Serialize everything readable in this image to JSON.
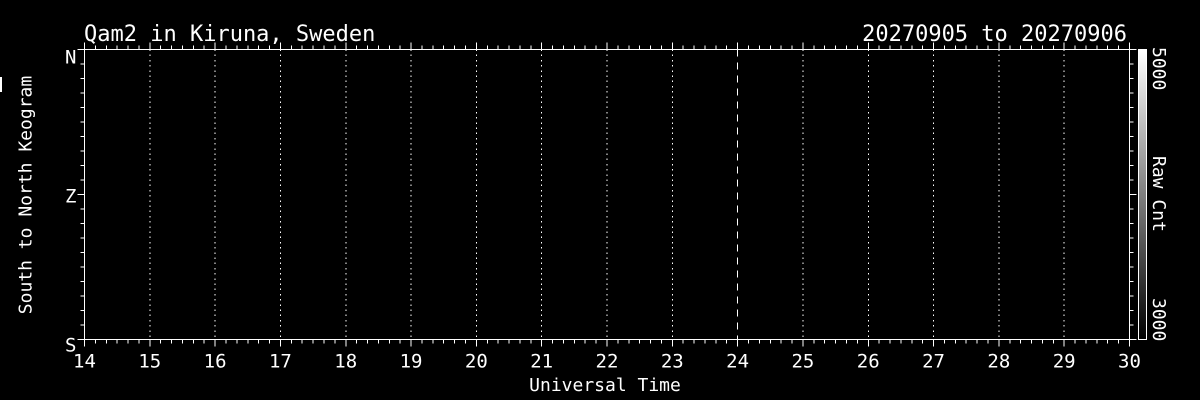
{
  "window": {
    "background_color": "#000000",
    "foreground_color": "#ffffff"
  },
  "chart_data": {
    "type": "heatmap",
    "variant": "keogram",
    "title": "Qam2 in Kiruna, Sweden",
    "date_range": "20270905 to 20270906",
    "xlabel": "Universal Time",
    "ylabel": "South to North Keogram",
    "xlim": [
      14,
      30
    ],
    "xticks": [
      14,
      15,
      16,
      17,
      18,
      19,
      20,
      21,
      22,
      23,
      24,
      25,
      26,
      27,
      28,
      29,
      30
    ],
    "x_minor_divisions_per_hour": 6,
    "ytick_labels": [
      "N",
      "Z",
      "S"
    ],
    "y_minor_intervals": 20,
    "grid": {
      "dotted_hours": [
        15,
        16,
        17,
        18,
        19,
        20,
        21,
        22,
        23,
        25,
        26,
        27,
        28,
        29
      ],
      "dashed_hours": [
        24
      ]
    },
    "colorbar": {
      "label": "Raw Cnt",
      "top_value": "5000",
      "bottom_value": "3000",
      "top_color": "#ffffff",
      "bottom_color": "#000000"
    },
    "plot_content": "uniform black interior (no counts above display threshold)"
  }
}
